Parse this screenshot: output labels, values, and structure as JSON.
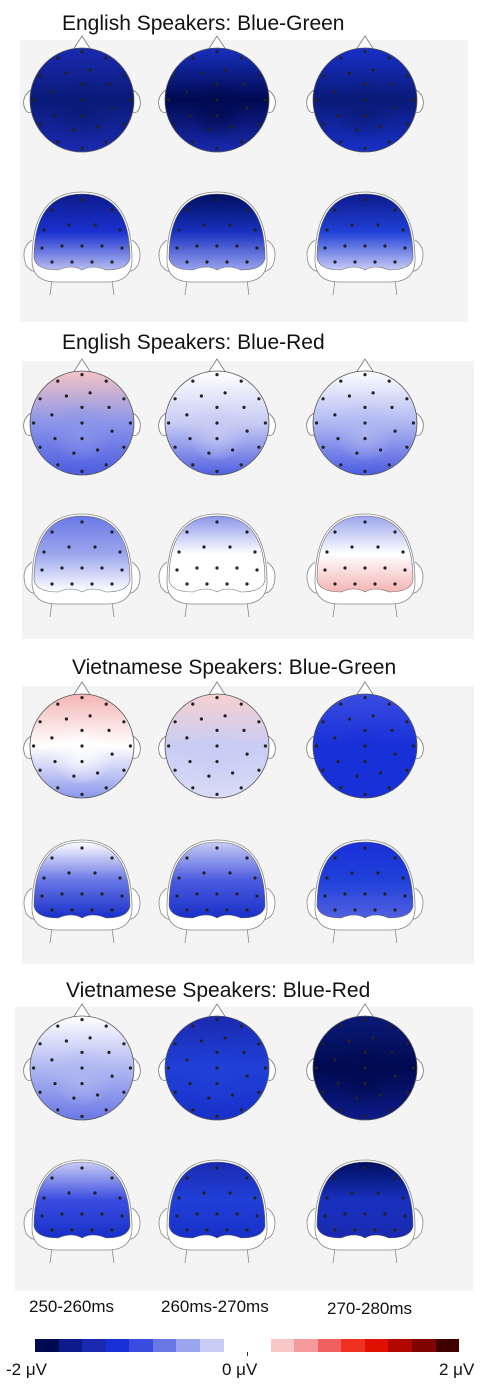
{
  "sections": [
    {
      "title": "English Speakers: Blue-Green",
      "maps": [
        {
          "top": [
            "#1a2ab0",
            "#0a1a78",
            "#1a2ab0"
          ],
          "back": [
            "#0d1b8a",
            "#1a30d0",
            "#b8bff0"
          ]
        },
        {
          "top": [
            "#1830c0",
            "#000a50",
            "#1a2ab0"
          ],
          "back": [
            "#000f60",
            "#1830c0",
            "#9aa4ee"
          ]
        },
        {
          "top": [
            "#1830c8",
            "#0a1a78",
            "#1830c8"
          ],
          "back": [
            "#0d1b8a",
            "#2040d8",
            "#c8ccf4"
          ]
        }
      ]
    },
    {
      "title": "English Speakers: Blue-Red",
      "maps": [
        {
          "top": [
            "#f4c4c4",
            "#8a95ea",
            "#4c5ce0"
          ],
          "back": [
            "#6a78e6",
            "#9ca6ee",
            "#ffffff"
          ]
        },
        {
          "top": [
            "#ffffff",
            "#c8ccf4",
            "#5060e0"
          ],
          "back": [
            "#8a95ea",
            "#ffffff",
            "#ffffff"
          ]
        },
        {
          "top": [
            "#ffffff",
            "#b0b8f2",
            "#4c5ce0"
          ],
          "back": [
            "#9ca6ee",
            "#ffffff",
            "#f4b4b4"
          ]
        }
      ]
    },
    {
      "title": "Vietnamese Speakers: Blue-Green",
      "maps": [
        {
          "top": [
            "#f4b4b4",
            "#ffffff",
            "#8a95ea"
          ],
          "back": [
            "#ffffff",
            "#6a78e6",
            "#1830c8"
          ]
        },
        {
          "top": [
            "#f8d0d0",
            "#c8ccf4",
            "#d8dcf6"
          ],
          "back": [
            "#c8ccf4",
            "#4c5ce0",
            "#1830c8"
          ]
        },
        {
          "top": [
            "#3a4ce0",
            "#1830d8",
            "#1830d8"
          ],
          "back": [
            "#1830d8",
            "#2040d8",
            "#5060e0"
          ]
        }
      ]
    },
    {
      "title": "Vietnamese Speakers: Blue-Red",
      "maps": [
        {
          "top": [
            "#ffffff",
            "#b0b8f2",
            "#6a78e6"
          ],
          "back": [
            "#c8ccf4",
            "#3a4ce0",
            "#1830c8"
          ]
        },
        {
          "top": [
            "#1a2ab0",
            "#2040d8",
            "#1830c8"
          ],
          "back": [
            "#1a2ab0",
            "#2040d8",
            "#1830c8"
          ]
        },
        {
          "top": [
            "#0a1a78",
            "#000a50",
            "#0d1b8a"
          ],
          "back": [
            "#000f60",
            "#1830c0",
            "#1a2ab0"
          ]
        }
      ]
    }
  ],
  "time_windows": [
    "250-260ms",
    "260ms-270ms",
    "270-280ms"
  ],
  "colorbar": {
    "min_label": "-2 μV",
    "mid_label": "0 μV",
    "max_label": "2 μV",
    "colors": [
      "#000a50",
      "#0d1b8a",
      "#1a2ab0",
      "#1830d8",
      "#3a4ce0",
      "#6a78e6",
      "#9ca6ee",
      "#c8ccf4",
      "#ffffff",
      "#ffffff",
      "#f8c8c8",
      "#f49a9a",
      "#f06060",
      "#f03020",
      "#e01000",
      "#b00800",
      "#800400",
      "#400000"
    ]
  }
}
